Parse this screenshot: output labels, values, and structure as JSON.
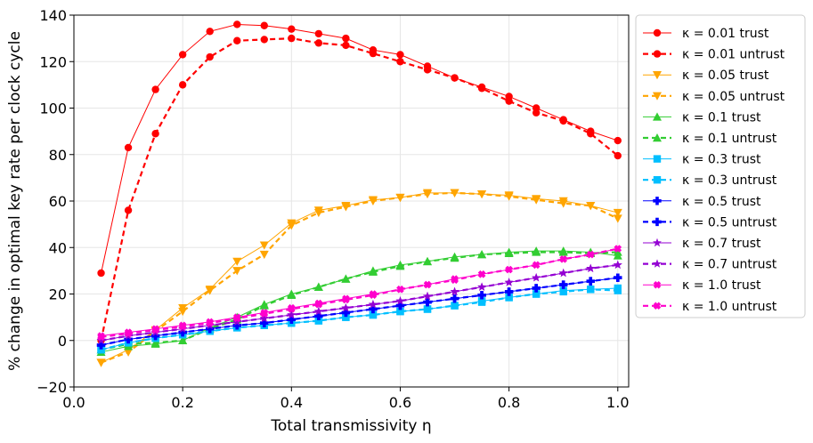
{
  "chart_data": {
    "type": "line",
    "title": "",
    "xlabel": "Total transmissivity η",
    "ylabel": "% change in optimal key rate per clock cycle",
    "xlim": [
      0.0,
      1.02
    ],
    "ylim": [
      -20,
      140
    ],
    "xticks": [
      0.0,
      0.2,
      0.4,
      0.6,
      0.8,
      1.0
    ],
    "xtick_labels": [
      "0.0",
      "0.2",
      "0.4",
      "0.6",
      "0.8",
      "1.0"
    ],
    "yticks": [
      -20,
      0,
      20,
      40,
      60,
      80,
      100,
      120,
      140
    ],
    "ytick_labels": [
      "−20",
      "0",
      "20",
      "40",
      "60",
      "80",
      "100",
      "120",
      "140"
    ],
    "grid": true,
    "legend_position": "outside-right",
    "x": [
      0.05,
      0.1,
      0.15,
      0.2,
      0.25,
      0.3,
      0.35,
      0.4,
      0.45,
      0.5,
      0.55,
      0.6,
      0.65,
      0.7,
      0.75,
      0.8,
      0.85,
      0.9,
      0.95,
      1.0
    ],
    "series": [
      {
        "name": "κ = 0.01 trust",
        "color": "#ff0000",
        "marker": "circle",
        "dashed": false,
        "values": [
          29,
          83,
          108,
          123,
          133,
          136,
          135.5,
          134,
          132,
          130,
          125,
          123,
          118,
          113,
          109,
          105,
          100,
          95,
          90,
          86
        ]
      },
      {
        "name": "κ = 0.01 untrust",
        "color": "#ff0000",
        "marker": "circle",
        "dashed": true,
        "values": [
          0,
          56,
          89,
          110,
          122,
          129,
          129.5,
          130,
          128,
          127,
          123.5,
          120,
          116.5,
          113,
          108.5,
          103,
          98,
          94.5,
          89,
          79.5
        ]
      },
      {
        "name": "κ = 0.05 trust",
        "color": "#ffa500",
        "marker": "triangle-down",
        "dashed": false,
        "values": [
          -9.5,
          -4,
          4.5,
          14,
          22,
          34,
          41,
          50.5,
          56,
          58,
          60.5,
          61.5,
          63.5,
          63.5,
          63,
          62.5,
          61,
          60,
          58,
          55
        ]
      },
      {
        "name": "κ = 0.05 untrust",
        "color": "#ffa500",
        "marker": "triangle-down",
        "dashed": true,
        "values": [
          -9.5,
          -5,
          4,
          12.5,
          21.5,
          30,
          37,
          49.5,
          55,
          57.5,
          60,
          61.5,
          63,
          63.5,
          63,
          62,
          60.5,
          59,
          58,
          52.5
        ]
      },
      {
        "name": "κ = 0.1 trust",
        "color": "#32cd32",
        "marker": "triangle-up",
        "dashed": false,
        "values": [
          -5,
          -2.5,
          -1.5,
          0,
          5.5,
          10,
          15.5,
          20,
          23,
          26.5,
          30,
          32.5,
          34,
          36,
          37,
          38,
          38.5,
          38.5,
          38,
          36.5
        ]
      },
      {
        "name": "κ = 0.1 untrust",
        "color": "#32cd32",
        "marker": "triangle-up",
        "dashed": true,
        "values": [
          -4,
          -1.5,
          -1,
          0,
          5,
          9,
          15,
          19.5,
          23,
          26.5,
          29.5,
          32,
          34,
          35.5,
          37,
          37.5,
          38,
          38,
          37.5,
          38
        ]
      },
      {
        "name": "κ = 0.3 trust",
        "color": "#00bfff",
        "marker": "square",
        "dashed": false,
        "values": [
          -4,
          -1,
          1,
          2.5,
          4,
          5.5,
          6.5,
          7.5,
          8.5,
          10,
          11,
          12.5,
          13.5,
          15,
          17,
          18.5,
          20,
          21.5,
          22,
          22.5
        ]
      },
      {
        "name": "κ = 0.3 untrust",
        "color": "#00bfff",
        "marker": "square",
        "dashed": true,
        "values": [
          -4,
          -1,
          1,
          2.5,
          4,
          5.5,
          6.5,
          7.5,
          8.5,
          10,
          11,
          12.5,
          13.5,
          15,
          16.5,
          18.5,
          20,
          21,
          22,
          21.5
        ]
      },
      {
        "name": "κ = 0.5 trust",
        "color": "#0000ff",
        "marker": "plus",
        "dashed": false,
        "values": [
          -2,
          0.5,
          2,
          3.5,
          5,
          6.5,
          7.5,
          9,
          10.5,
          12,
          13.5,
          15,
          16.5,
          18,
          19.5,
          21,
          22.5,
          24,
          25.5,
          27
        ]
      },
      {
        "name": "κ = 0.5 untrust",
        "color": "#0000ff",
        "marker": "plus",
        "dashed": true,
        "values": [
          -2,
          0.5,
          2,
          3.5,
          5,
          6.5,
          7.5,
          9,
          10.5,
          12,
          13.5,
          15,
          16.5,
          18,
          19.5,
          21,
          22.5,
          24,
          25.5,
          27
        ]
      },
      {
        "name": "κ = 0.7 trust",
        "color": "#9400d3",
        "marker": "star",
        "dashed": false,
        "values": [
          0,
          2,
          3.5,
          5,
          6.5,
          8,
          9.5,
          11,
          12.5,
          14,
          15.5,
          17,
          19,
          21,
          23,
          25,
          27,
          29,
          31,
          32.5
        ]
      },
      {
        "name": "κ = 0.7 untrust",
        "color": "#9400d3",
        "marker": "star",
        "dashed": true,
        "values": [
          0,
          2,
          3.5,
          5,
          6.5,
          8,
          9.5,
          11,
          12.5,
          14,
          15.5,
          17,
          19,
          21,
          23,
          25,
          27,
          29,
          31,
          32.5
        ]
      },
      {
        "name": "κ = 1.0 trust",
        "color": "#ff00cc",
        "marker": "x",
        "dashed": false,
        "values": [
          2,
          3.5,
          5,
          6.5,
          8,
          10,
          12,
          14,
          16,
          18,
          20,
          22,
          24,
          26.5,
          28.5,
          30.5,
          32.5,
          35,
          37,
          39.5
        ]
      },
      {
        "name": "κ = 1.0 untrust",
        "color": "#ff00cc",
        "marker": "x",
        "dashed": true,
        "values": [
          1.5,
          3,
          4.5,
          6,
          7.5,
          9.5,
          11.5,
          13.5,
          15.5,
          17.5,
          19.5,
          22,
          24,
          26,
          28.5,
          30.5,
          32.5,
          35,
          37,
          39.5
        ]
      }
    ]
  }
}
